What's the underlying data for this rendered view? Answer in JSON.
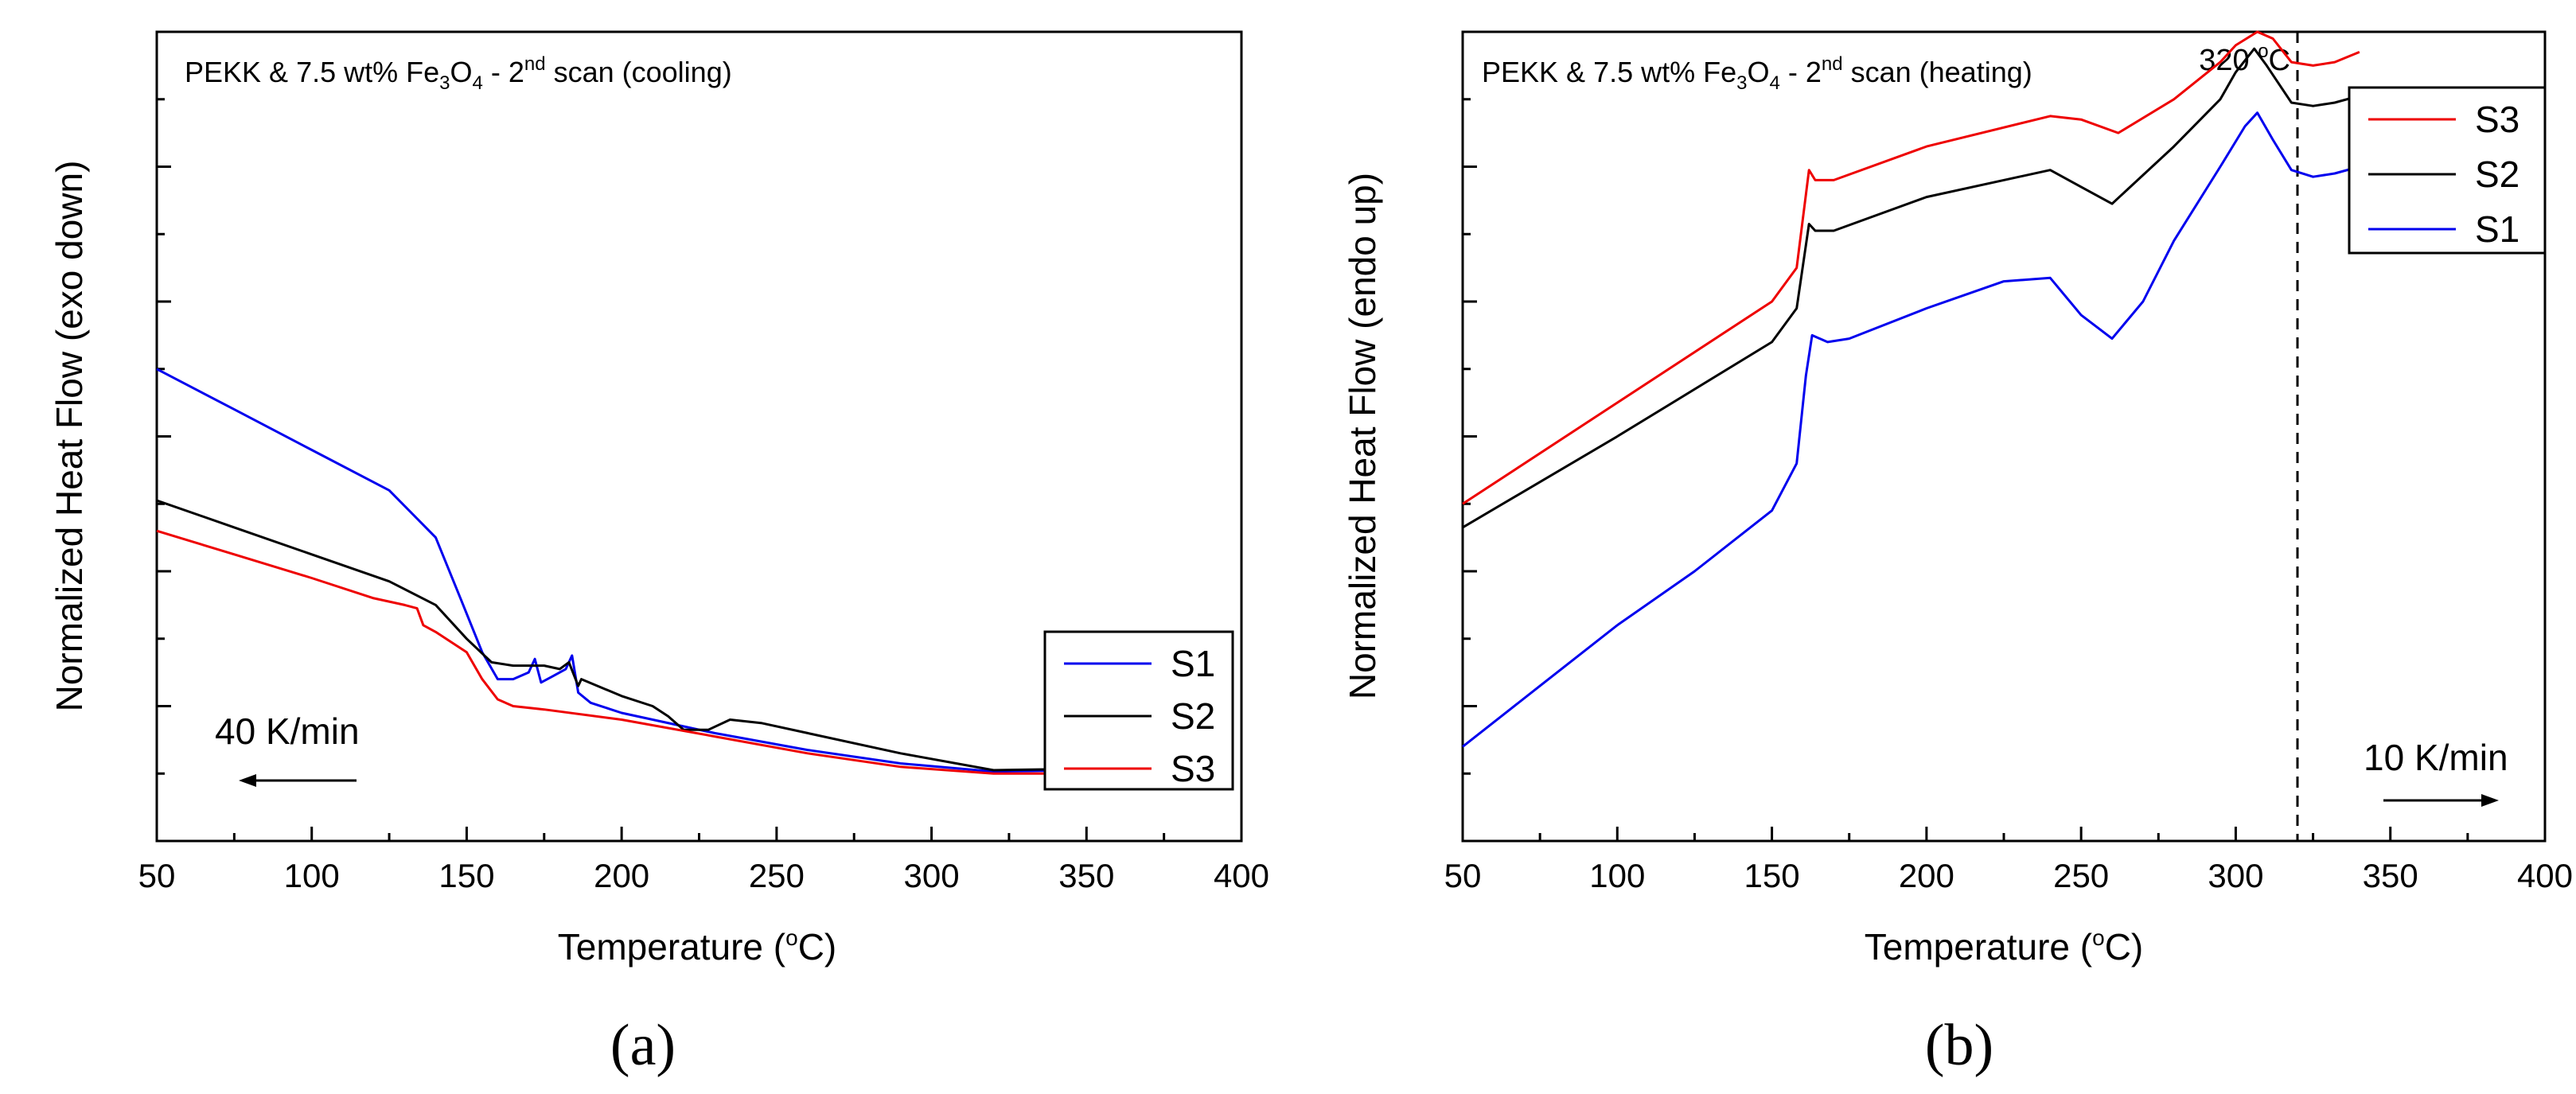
{
  "chart_data": [
    {
      "type": "line",
      "panel_label": "(a)",
      "title_parts": {
        "pre": "PEKK & 7.5 wt% Fe",
        "sub1": "3",
        "mid": "O",
        "sub2": "4",
        "post1": " - 2",
        "sup": "nd",
        "post2": " scan (cooling)"
      },
      "xlabel": {
        "pre": "Temperature (",
        "sup": "o",
        "post": "C)"
      },
      "ylabel": "Normalized Heat Flow (exo down)",
      "xlim": [
        50,
        400
      ],
      "ylim": [
        0,
        12
      ],
      "xticks": [
        "50",
        "100",
        "150",
        "200",
        "250",
        "300",
        "350",
        "400"
      ],
      "grid": false,
      "rate_label": "40 K/min",
      "rate_direction": "left",
      "legend": {
        "position": "bottom-right",
        "entries": [
          "S1",
          "S2",
          "S3"
        ]
      },
      "series": [
        {
          "name": "S1",
          "color": "#0000ee",
          "x": [
            50,
            75,
            100,
            125,
            140,
            148,
            155,
            160,
            165,
            170,
            172,
            174,
            178,
            182,
            184,
            186,
            190,
            200,
            230,
            260,
            290,
            320,
            350
          ],
          "y": [
            7.0,
            6.4,
            5.8,
            5.2,
            4.5,
            3.6,
            2.8,
            2.4,
            2.4,
            2.5,
            2.7,
            2.35,
            2.45,
            2.55,
            2.75,
            2.2,
            2.05,
            1.9,
            1.6,
            1.35,
            1.15,
            1.03,
            1.05
          ]
        },
        {
          "name": "S2",
          "color": "#000000",
          "x": [
            50,
            75,
            100,
            125,
            140,
            150,
            158,
            165,
            170,
            175,
            180,
            183,
            186,
            187,
            200,
            210,
            215,
            220,
            228,
            235,
            245,
            260,
            290,
            320,
            350
          ],
          "y": [
            5.05,
            4.65,
            4.25,
            3.85,
            3.5,
            3.0,
            2.65,
            2.6,
            2.6,
            2.6,
            2.55,
            2.65,
            2.3,
            2.4,
            2.15,
            2.0,
            1.85,
            1.65,
            1.65,
            1.8,
            1.75,
            1.6,
            1.3,
            1.05,
            1.07
          ]
        },
        {
          "name": "S3",
          "color": "#ee0000",
          "x": [
            50,
            75,
            100,
            120,
            130,
            134,
            136,
            140,
            150,
            155,
            160,
            165,
            175,
            200,
            230,
            260,
            290,
            320,
            350
          ],
          "y": [
            4.6,
            4.25,
            3.9,
            3.6,
            3.5,
            3.45,
            3.2,
            3.1,
            2.8,
            2.4,
            2.1,
            2.0,
            1.95,
            1.8,
            1.55,
            1.3,
            1.1,
            1.0,
            1.0
          ]
        }
      ]
    },
    {
      "type": "line",
      "panel_label": "(b)",
      "title_parts": {
        "pre": "PEKK & 7.5 wt% Fe",
        "sub1": "3",
        "mid": "O",
        "sub2": "4",
        "post1": " - 2",
        "sup": "nd",
        "post2": " scan (heating)"
      },
      "xlabel": {
        "pre": "Temperature (",
        "sup": "o",
        "post": "C)"
      },
      "ylabel": "Normalized Heat Flow (endo up)",
      "xlim": [
        50,
        400
      ],
      "ylim": [
        0,
        12
      ],
      "xticks": [
        "50",
        "100",
        "150",
        "200",
        "250",
        "300",
        "350",
        "400"
      ],
      "grid": false,
      "rate_label": "10 K/min",
      "rate_direction": "right",
      "annotation": {
        "x": 320,
        "label_pre": "320 ",
        "label_sup": "o",
        "label_post": "C",
        "style": "dashed-vertical"
      },
      "legend": {
        "position": "top-right",
        "entries": [
          "S3",
          "S2",
          "S1"
        ]
      },
      "series": [
        {
          "name": "S3",
          "color": "#ee0000",
          "x": [
            50,
            100,
            150,
            158,
            162,
            164,
            170,
            200,
            240,
            250,
            262,
            280,
            295,
            300,
            307,
            312,
            318,
            325,
            332,
            340
          ],
          "y": [
            5.0,
            6.5,
            8.0,
            8.5,
            9.95,
            9.8,
            9.8,
            10.3,
            10.75,
            10.7,
            10.5,
            11.0,
            11.55,
            11.8,
            12.0,
            11.9,
            11.55,
            11.5,
            11.55,
            11.7
          ]
        },
        {
          "name": "S2",
          "color": "#000000",
          "x": [
            50,
            100,
            150,
            158,
            162,
            164,
            170,
            200,
            240,
            250,
            260,
            280,
            295,
            300,
            306,
            310,
            318,
            325,
            332,
            340
          ],
          "y": [
            4.65,
            6.0,
            7.4,
            7.9,
            9.15,
            9.05,
            9.05,
            9.55,
            9.95,
            9.7,
            9.45,
            10.3,
            11.0,
            11.4,
            11.75,
            11.5,
            10.95,
            10.9,
            10.95,
            11.05
          ]
        },
        {
          "name": "S1",
          "color": "#0000ee",
          "x": [
            50,
            75,
            100,
            125,
            150,
            158,
            161,
            163,
            168,
            175,
            200,
            225,
            240,
            250,
            260,
            270,
            280,
            295,
            303,
            307,
            312,
            318,
            325,
            332,
            340
          ],
          "y": [
            1.4,
            2.3,
            3.2,
            4.0,
            4.9,
            5.6,
            6.9,
            7.5,
            7.4,
            7.45,
            7.9,
            8.3,
            8.35,
            7.8,
            7.45,
            8.0,
            8.9,
            10.0,
            10.6,
            10.8,
            10.4,
            9.95,
            9.85,
            9.9,
            10.0
          ]
        }
      ]
    }
  ]
}
